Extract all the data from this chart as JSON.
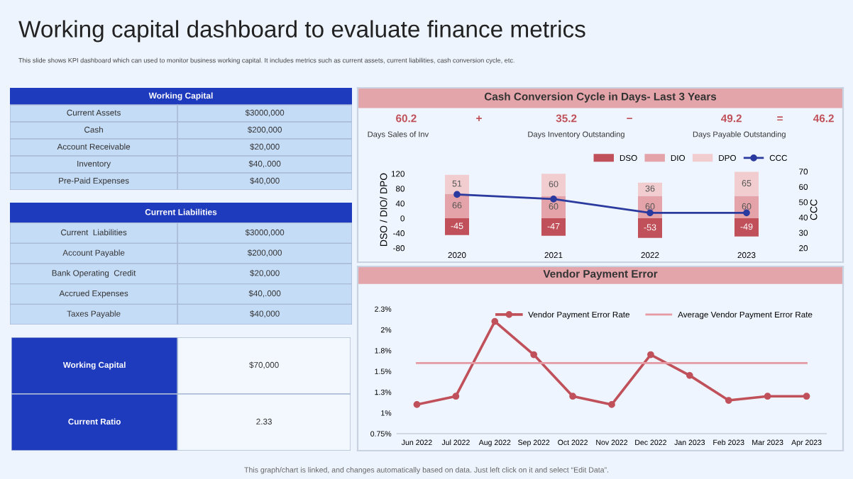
{
  "chart_data": [
    {
      "type": "other",
      "title": "Working capital dashboard to evaluate finance metrics",
      "subtitle": "This slide shows KPI dashboard which can used to monitor business working capital. It includes metrics such as current assets, current liabilities, cash conversion cycle, etc."
    },
    {
      "type": "other",
      "title": "Working Capital",
      "categories": [
        "Current Assets",
        "Cash",
        "Account Receivable",
        "Inventory",
        "Pre-Paid Expenses"
      ],
      "value_labels": [
        "$3000,000",
        "$200,000",
        "$20,000",
        "$40,.000",
        "$40,000"
      ]
    },
    {
      "type": "other",
      "title": "Current Liabilities",
      "categories": [
        "Current  Liabilities",
        "Account Payable",
        "Bank Operating  Credit",
        "Accrued Expenses",
        "Taxes Payable"
      ],
      "value_labels": [
        "$3000,000",
        "$200,000",
        "$20,000",
        "$40,.000",
        "$40,000"
      ]
    },
    {
      "type": "other",
      "categories": [
        "Working Capital",
        "Current Ratio"
      ],
      "value_labels": [
        "$70,000",
        "2.33"
      ]
    },
    {
      "type": "bar",
      "title": "Cash Conversion Cycle in Days- Last 3 Years",
      "stacked": true,
      "categories": [
        "2020",
        "2021",
        "2022",
        "2023"
      ],
      "series": [
        {
          "name": "DSO",
          "color": "#c0505a",
          "values": [
            -45,
            -47,
            -53,
            -49
          ],
          "value_labels": [
            "-45",
            "-47",
            "-53",
            "-49"
          ]
        },
        {
          "name": "DIO",
          "color": "#e3a3a8",
          "values": [
            66,
            60,
            60,
            60
          ],
          "value_labels": [
            "66",
            "60",
            "60",
            "60"
          ]
        },
        {
          "name": "DPO",
          "color": "#f2cdd0",
          "values": [
            51,
            60,
            36,
            65
          ],
          "value_labels": [
            "51",
            "60",
            "36",
            "65"
          ]
        },
        {
          "name": "CCC",
          "type": "line",
          "axis": "y2",
          "color": "#2b3a9e",
          "marker": "circle",
          "values": [
            55,
            52,
            43,
            43
          ]
        }
      ],
      "ylim": [
        -80,
        126
      ],
      "yticks": [
        -80,
        -40,
        0,
        40,
        80,
        120
      ],
      "y2lim": [
        20,
        70
      ],
      "y2ticks": [
        20,
        30,
        40,
        50,
        60,
        70
      ],
      "ylabel": "DSO / DIO/ DPO",
      "y2label": "CCC",
      "legend": "top right",
      "grid": false,
      "annotations": [
        "60.2",
        "Days Sales of Inv",
        "+",
        "35.2",
        "Days Inventory Outstanding",
        "−",
        "49.2",
        "Days Payable Outstanding",
        "=",
        "46.2"
      ]
    },
    {
      "type": "line",
      "title": "Vendor Payment Error",
      "categories": [
        "Jun 2022",
        "Jul 2022",
        "Aug 2022",
        "Sep 2022",
        "Oct 2022",
        "Nov 2022",
        "Dec 2022",
        "Jan 2023",
        "Feb 2023",
        "Mar 2023",
        "Apr 2023"
      ],
      "series": [
        {
          "name": "Vendor Payment Error Rate",
          "color": "#c0505a",
          "marker": "circle",
          "values": [
            1.1,
            1.2,
            2.1,
            1.7,
            1.2,
            1.1,
            1.7,
            1.45,
            1.15,
            1.2,
            1.2
          ]
        },
        {
          "name": "Average Vendor Payment Error Rate",
          "color": "#e59aa4",
          "marker": "none",
          "values": [
            1.6,
            1.6,
            1.6,
            1.6,
            1.6,
            1.6,
            1.6,
            1.6,
            1.6,
            1.6,
            1.6
          ]
        }
      ],
      "ylim": [
        0.75,
        2.25
      ],
      "yticks": [
        {
          "value": 0.75,
          "label": "0.75%"
        },
        {
          "value": 1,
          "label": "1%"
        },
        {
          "value": 1.25,
          "label": "1.3%"
        },
        {
          "value": 1.5,
          "label": "1.5%"
        },
        {
          "value": 1.75,
          "label": "1.8%"
        },
        {
          "value": 2,
          "label": "2%"
        },
        {
          "value": 2.25,
          "label": "2.3%"
        }
      ],
      "legend": "top",
      "grid": false,
      "annotations": [
        "This graph/chart is linked, and changes automatically based on data. Just left click on it and select “Edit Data”."
      ]
    }
  ]
}
